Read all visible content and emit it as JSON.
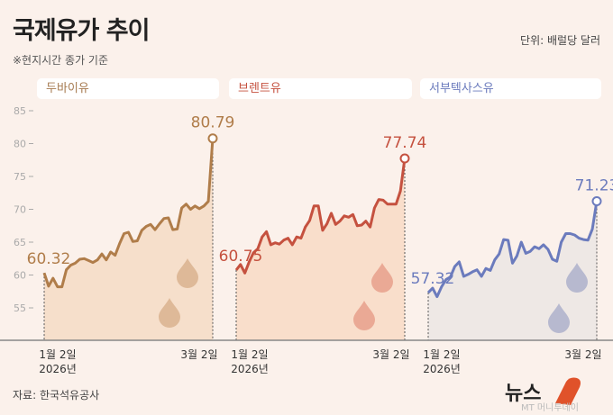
{
  "header": {
    "title": "국제유가 추이",
    "subtitle": "※현지시간 종가 기준",
    "unit": "단위: 배럴당 달러"
  },
  "footer": {
    "source": "자료: 한국석유공사",
    "logo_text": "뉴스1 머니투데이"
  },
  "chart_data": [
    {
      "type": "area",
      "title": "두바이유",
      "x_tick_labels": [
        "1월 2일\n2026년",
        "3월 2일"
      ],
      "x_start": "1월 2일",
      "x_start_year": "2026년",
      "x_end": "3월 2일",
      "ylim": [
        52,
        85
      ],
      "y_ticks": [
        85,
        80,
        75,
        70,
        65,
        60,
        55
      ],
      "color": "#b07d4a",
      "fill": "#f5dcc6",
      "drop_color": "#deb998",
      "start_label": "60.32",
      "end_label": "80.79",
      "values": [
        60.32,
        58.3,
        59.5,
        58.2,
        58.2,
        60.8,
        61.5,
        61.8,
        62.4,
        62.5,
        62.2,
        61.9,
        62.3,
        63.2,
        62.3,
        63.5,
        63.0,
        64.8,
        66.3,
        66.5,
        65.1,
        65.2,
        66.8,
        67.4,
        67.7,
        66.9,
        67.8,
        68.6,
        68.7,
        66.9,
        67.0,
        70.2,
        70.8,
        70.0,
        70.5,
        70.1,
        70.5,
        71.2,
        80.79
      ]
    },
    {
      "type": "area",
      "title": "브렌트유",
      "x_start": "1월 2일",
      "x_start_year": "2026년",
      "x_end": "3월 2일",
      "ylim": [
        52,
        85
      ],
      "color": "#c5513f",
      "fill": "#f8dac6",
      "drop_color": "#eaa995",
      "start_label": "60.75",
      "end_label": "77.74",
      "values": [
        60.75,
        61.6,
        60.3,
        62.0,
        63.4,
        64.0,
        65.8,
        66.6,
        64.6,
        64.9,
        64.7,
        65.3,
        65.6,
        64.6,
        65.8,
        65.6,
        67.3,
        68.3,
        70.5,
        70.5,
        66.8,
        67.8,
        69.4,
        67.7,
        68.2,
        69.0,
        68.8,
        69.2,
        67.5,
        67.6,
        68.2,
        67.3,
        70.2,
        71.5,
        71.4,
        70.8,
        70.8,
        70.8,
        72.8,
        77.74
      ]
    },
    {
      "type": "area",
      "title": "서부텍사스유",
      "x_start": "1월 2일",
      "x_start_year": "2026년",
      "x_end": "3월 2일",
      "ylim": [
        52,
        85
      ],
      "color": "#6b7bbd",
      "fill": "#ebe6e4",
      "drop_color": "#b7b9cf",
      "start_label": "57.32",
      "end_label": "71.23",
      "values": [
        57.32,
        58.0,
        56.7,
        58.2,
        59.3,
        59.7,
        61.3,
        62.0,
        59.8,
        60.1,
        60.5,
        60.8,
        59.8,
        61.0,
        60.7,
        62.3,
        63.2,
        65.4,
        65.3,
        61.8,
        62.9,
        65.0,
        63.3,
        63.6,
        64.3,
        64.0,
        64.6,
        63.9,
        62.4,
        62.1,
        65.0,
        66.3,
        66.3,
        66.1,
        65.6,
        65.4,
        65.3,
        67.0,
        71.23
      ]
    }
  ]
}
